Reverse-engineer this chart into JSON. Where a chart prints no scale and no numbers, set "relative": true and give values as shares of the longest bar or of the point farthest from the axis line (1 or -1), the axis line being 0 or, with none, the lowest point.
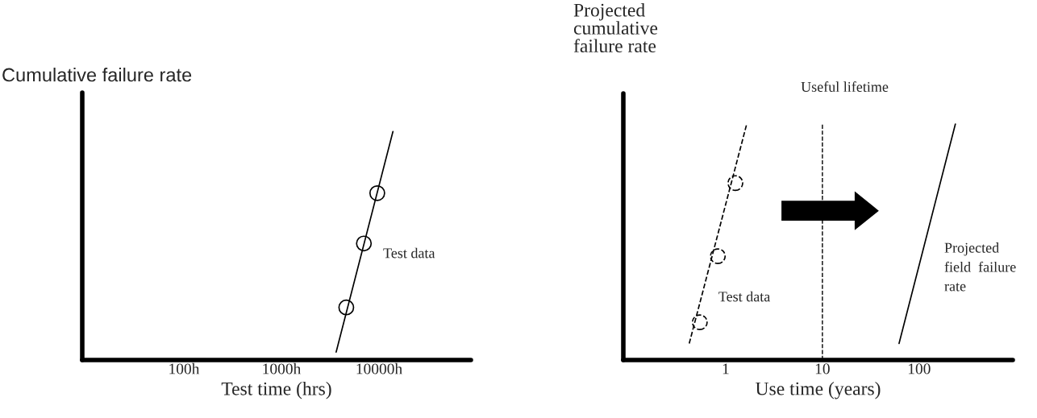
{
  "chart_data": [
    {
      "type": "line",
      "ylabel": "Cumulative failure rate",
      "xlabel": "Test time (hrs)",
      "relative": true,
      "log": "x",
      "grid": false,
      "legend": false,
      "tick_labels": "x",
      "xlim": [
        9.1,
        87500
      ],
      "xticks": [
        {
          "value": 100,
          "label": "100h"
        },
        {
          "value": 1000,
          "label": "1000h"
        },
        {
          "value": 10000,
          "label": "10000h"
        }
      ],
      "series": [
        {
          "type": "scatter",
          "color": "#000000",
          "marker": "circle",
          "x": [
            4620,
            7000,
            9600
          ],
          "values": [
            0.23,
            0.51,
            0.73
          ]
        },
        {
          "type": "line",
          "color": "#000000",
          "line_style": "solid",
          "marker": "none",
          "x": [
            3640,
            13900
          ],
          "values": [
            0.035,
            1.0
          ]
        }
      ],
      "annotations": [
        "Test data"
      ]
    },
    {
      "type": "line",
      "ylabel": "Projected\ncumulative\nfailure rate",
      "xlabel": "Use time (years)",
      "relative": true,
      "log": "x",
      "grid": false,
      "legend": false,
      "tick_labels": "x",
      "xlim": [
        0.0875,
        930
      ],
      "xticks": [
        1,
        10,
        100
      ],
      "series": [
        {
          "type": "scatter",
          "color": "#000000",
          "marker": "circle",
          "line_style": "dashed",
          "x": [
            0.54,
            0.83,
            1.26
          ],
          "values": [
            0.16,
            0.44,
            0.75
          ]
        },
        {
          "type": "line",
          "color": "#000000",
          "line_style": "dashed",
          "marker": "none",
          "x": [
            0.42,
            1.65
          ],
          "values": [
            0.07,
            1.0
          ]
        },
        {
          "type": "line",
          "color": "#000000",
          "line_style": "solid",
          "marker": "none",
          "x": [
            62,
            237
          ],
          "values": [
            0.07,
            1.0
          ]
        }
      ],
      "ref_lines": [
        {
          "axis": "x",
          "value": 10,
          "label": "Useful lifetime",
          "color": "#000000",
          "line_style": "dashed"
        }
      ],
      "annotations": [
        "Test data",
        "Projected\nfield  failure\nrate"
      ]
    }
  ]
}
